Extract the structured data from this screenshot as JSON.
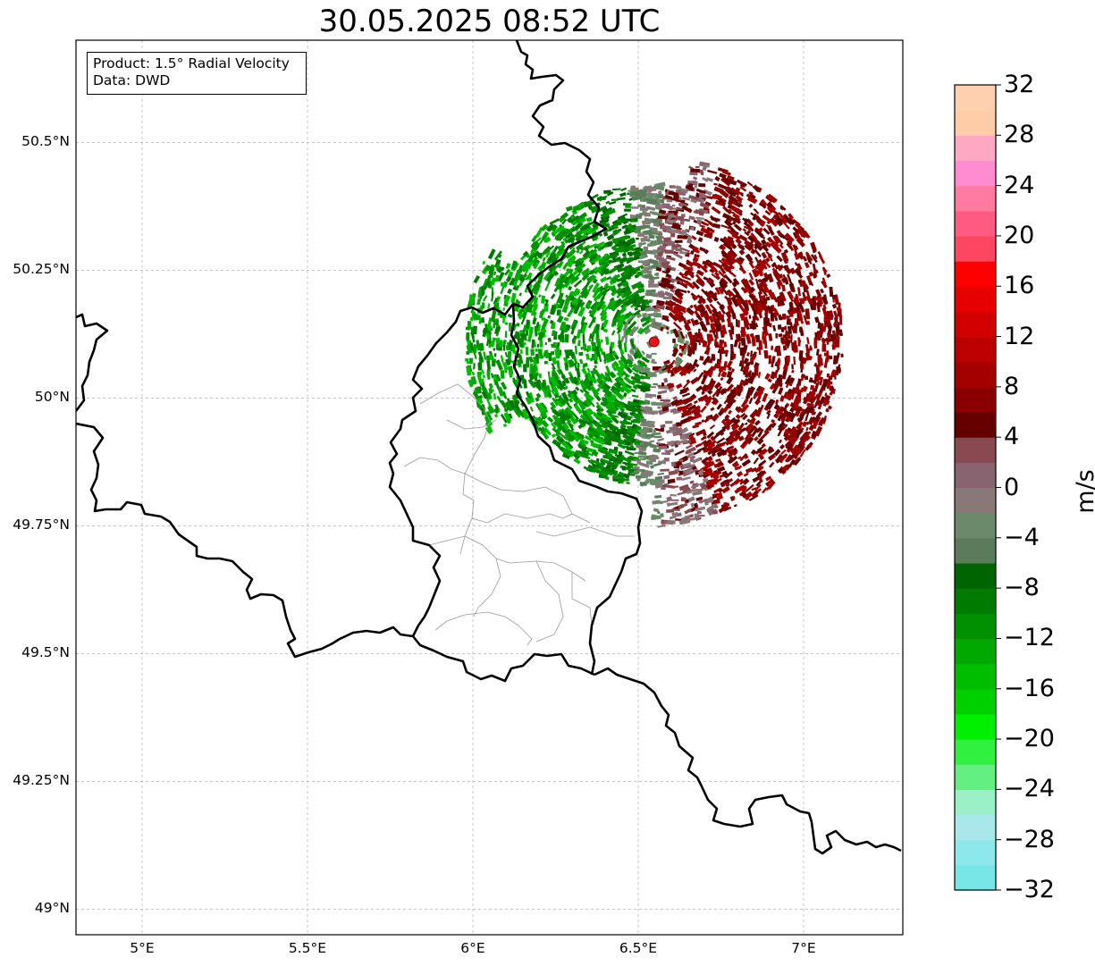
{
  "title": "30.05.2025 08:52 UTC",
  "info": {
    "line1": "Product: 1.5° Radial Velocity",
    "line2": "Data: DWD"
  },
  "map": {
    "lon_range": [
      4.8,
      7.3
    ],
    "lat_range": [
      48.95,
      50.7
    ],
    "lon_ticks": [
      {
        "v": 5.0,
        "label": "5°E"
      },
      {
        "v": 5.5,
        "label": "5.5°E"
      },
      {
        "v": 6.0,
        "label": "6°E"
      },
      {
        "v": 6.5,
        "label": "6.5°E"
      },
      {
        "v": 7.0,
        "label": "7°E"
      }
    ],
    "lat_ticks": [
      {
        "v": 49.0,
        "label": "49°N"
      },
      {
        "v": 49.25,
        "label": "49.25°N"
      },
      {
        "v": 49.5,
        "label": "49.5°N"
      },
      {
        "v": 49.75,
        "label": "49.75°N"
      },
      {
        "v": 50.0,
        "label": "50°N"
      },
      {
        "v": 50.25,
        "label": "50.25°N"
      },
      {
        "v": 50.5,
        "label": "50.5°N"
      }
    ],
    "grid": true,
    "radar_site": {
      "lon": 6.548,
      "lat": 50.11,
      "color": "#e8141c"
    },
    "radar_max_range_deg_lon": 0.57
  },
  "colorbar": {
    "label": "m/s",
    "min": -32,
    "max": 32,
    "ticks": [
      {
        "v": 32,
        "label": "32"
      },
      {
        "v": 28,
        "label": "28"
      },
      {
        "v": 24,
        "label": "24"
      },
      {
        "v": 20,
        "label": "20"
      },
      {
        "v": 16,
        "label": "16"
      },
      {
        "v": 12,
        "label": "12"
      },
      {
        "v": 8,
        "label": "8"
      },
      {
        "v": 4,
        "label": "4"
      },
      {
        "v": 0,
        "label": "0"
      },
      {
        "v": -4,
        "label": "−4"
      },
      {
        "v": -8,
        "label": "−8"
      },
      {
        "v": -12,
        "label": "−12"
      },
      {
        "v": -16,
        "label": "−16"
      },
      {
        "v": -20,
        "label": "−20"
      },
      {
        "v": -24,
        "label": "−24"
      },
      {
        "v": -28,
        "label": "−28"
      },
      {
        "v": -32,
        "label": "−32"
      }
    ],
    "colors": [
      "#78e6e6",
      "#8ce8ea",
      "#a8e8ea",
      "#9cf0c8",
      "#64f080",
      "#30f040",
      "#00f000",
      "#00d000",
      "#00bd00",
      "#00a800",
      "#009000",
      "#007a00",
      "#006400",
      "#5a7c5a",
      "#6a8a6a",
      "#8a7878",
      "#886470",
      "#884a50",
      "#640000",
      "#8a0000",
      "#a40000",
      "#bc0000",
      "#d20000",
      "#e60000",
      "#ff0000",
      "#ff4660",
      "#ff5a82",
      "#ff7aa0",
      "#ff8cd0",
      "#ffa8c4",
      "#ffcca8",
      "#ffd0b0"
    ]
  }
}
